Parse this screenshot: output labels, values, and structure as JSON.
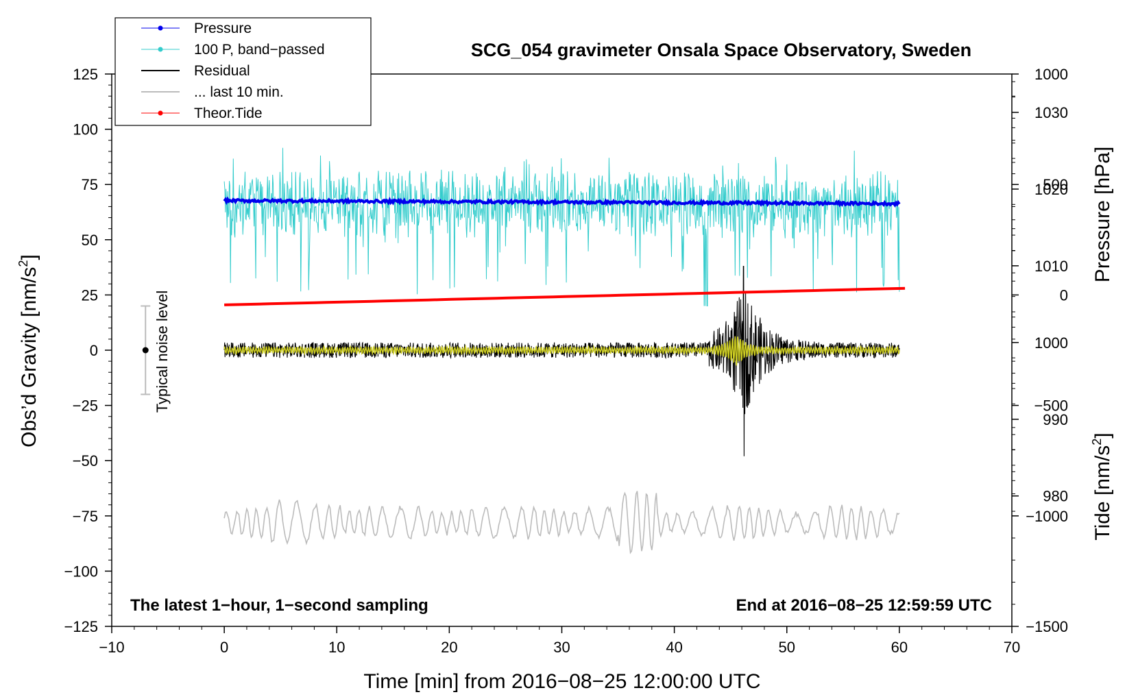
{
  "chart_data": {
    "type": "line",
    "title": "SCG_054 gravimeter Onsala Space Observatory, Sweden",
    "xlabel": "Time [min] from 2016−08−25 12:00:00 UTC",
    "ylabel_left_main": "Obs’d Gravity [nm/s",
    "ylabel_left_sup": "2",
    "ylabel_left_end": "]",
    "ylabel_right_top": "Pressure [hPa]",
    "ylabel_right_bottom_main": "Tide [nm/s",
    "ylabel_right_bottom_sup": "2",
    "ylabel_right_bottom_end": "]",
    "xlim": [
      -10,
      70
    ],
    "ylim": [
      -125,
      125
    ],
    "xticks": [
      "−10",
      "0",
      "10",
      "20",
      "30",
      "40",
      "50",
      "60",
      "70"
    ],
    "yticks_left": [
      "125",
      "100",
      "75",
      "50",
      "25",
      "0",
      "−25",
      "−50",
      "−75",
      "−100",
      "−125"
    ],
    "pressure_ylim": [
      963,
      1035
    ],
    "pressure_ticks": [
      "1030",
      "1020",
      "1010",
      "1000",
      "990",
      "980"
    ],
    "tide_ylim": [
      -1500,
      1000
    ],
    "tide_ticks": [
      "1000",
      "500",
      "0",
      "−500",
      "−1000",
      "−1500"
    ],
    "grid": false,
    "legend_position": "top-left",
    "annotation_left": "The latest 1−hour, 1−second sampling",
    "annotation_right": "End at 2016−08−25 12:59:59 UTC",
    "noise_label": "Typical noise level",
    "noise_bar": {
      "x": -7,
      "center": 0,
      "half_range": 20
    },
    "colors": {
      "pressure": "#0000ee",
      "bandpassed": "#33cccc",
      "residual": "#000000",
      "last10": "#bbbbbb",
      "tide": "#ff0000",
      "smoothed_residual": "#cccc22"
    },
    "series": [
      {
        "name": "Pressure",
        "axis": "pressure",
        "approx_level_hPa": 1018.5,
        "x_range": [
          0,
          60
        ]
      },
      {
        "name": "100 P, band−passed",
        "axis": "gravity",
        "approx_mean": 65,
        "x_range": [
          0,
          60
        ]
      },
      {
        "name": "Residual",
        "axis": "gravity",
        "approx_mean": 0,
        "event_peak": 38,
        "event_trough": -48,
        "event_time_min": 46.2,
        "x_range": [
          0,
          60
        ]
      },
      {
        "name": "... last 10 min.",
        "axis": "gravity",
        "approx_mean": -78,
        "x_range": [
          0,
          60
        ]
      },
      {
        "name": "Theor.Tide",
        "axis": "tide",
        "start_value": -45,
        "end_value": 30,
        "x_range": [
          0,
          60.5
        ]
      }
    ]
  }
}
